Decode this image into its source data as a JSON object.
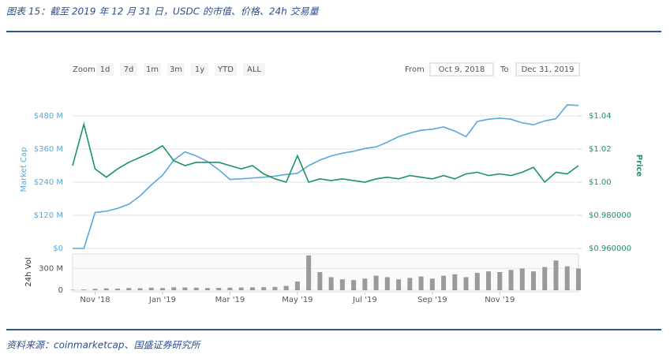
{
  "header": {
    "title": "图表 15：截至 2019 年 12 月 31 日，USDC 的市值、价格、24h 交易量"
  },
  "range_selector": {
    "zoom_label": "Zoom",
    "buttons": [
      "1d",
      "7d",
      "1m",
      "3m",
      "1y",
      "YTD",
      "ALL"
    ],
    "from_label": "From",
    "from": "Oct 9, 2018",
    "to_label": "To",
    "to": "Dec 31, 2019"
  },
  "chart_data": [
    {
      "type": "line",
      "ylabel": "Market Cap",
      "y2label": "Price",
      "ylim": [
        0,
        540
      ],
      "yticks": [
        {
          "value": 0,
          "label": "$0"
        },
        {
          "value": 120,
          "label": "$120 M"
        },
        {
          "value": 240,
          "label": "$240 M"
        },
        {
          "value": 360,
          "label": "$360 M"
        },
        {
          "value": 480,
          "label": "$480 M"
        }
      ],
      "y2lim": [
        0.96,
        1.05
      ],
      "y2ticks": [
        {
          "value": 0.96,
          "label": "$0.960000"
        },
        {
          "value": 0.98,
          "label": "$0.980000"
        },
        {
          "value": 1.0,
          "label": "$1.00"
        },
        {
          "value": 1.02,
          "label": "$1.02"
        },
        {
          "value": 1.04,
          "label": "$1.04"
        }
      ],
      "grid": true,
      "series": [
        {
          "color": "#5aa9d6",
          "values": [
            0,
            0,
            130,
            135,
            145,
            160,
            190,
            230,
            265,
            320,
            350,
            335,
            315,
            285,
            250,
            252,
            255,
            258,
            262,
            268,
            272,
            300,
            320,
            335,
            345,
            352,
            362,
            368,
            385,
            405,
            418,
            428,
            432,
            440,
            425,
            405,
            460,
            468,
            472,
            468,
            455,
            448,
            462,
            470,
            520,
            518
          ]
        },
        {
          "color": "#1a9466",
          "axis": "y2",
          "values": [
            1.01,
            1.035,
            1.008,
            1.003,
            1.008,
            1.012,
            1.015,
            1.018,
            1.022,
            1.013,
            1.01,
            1.012,
            1.012,
            1.012,
            1.01,
            1.008,
            1.01,
            1.005,
            1.002,
            1.0,
            1.016,
            1.0,
            1.002,
            1.001,
            1.002,
            1.001,
            1.0,
            1.002,
            1.003,
            1.002,
            1.004,
            1.003,
            1.002,
            1.004,
            1.002,
            1.005,
            1.006,
            1.004,
            1.005,
            1.004,
            1.006,
            1.009,
            1.0,
            1.006,
            1.005,
            1.01
          ]
        }
      ]
    },
    {
      "type": "bar",
      "ylabel": "24h Vol",
      "ylim": [
        0,
        500
      ],
      "yticks": [
        0,
        {
          "value": 300,
          "label": "300 M"
        }
      ],
      "color": "#9a9a9a",
      "categories": [
        null,
        null,
        "Nov '18",
        null,
        null,
        null,
        null,
        null,
        "Jan '19",
        null,
        null,
        null,
        null,
        null,
        "Mar '19",
        null,
        null,
        null,
        null,
        null,
        "May '19",
        null,
        null,
        null,
        null,
        null,
        "Jul '19",
        null,
        null,
        null,
        null,
        null,
        "Sep '19",
        null,
        null,
        null,
        null,
        null,
        "Nov '19",
        null,
        null,
        null,
        null,
        null,
        null,
        null
      ],
      "values": [
        5,
        10,
        20,
        25,
        22,
        30,
        28,
        35,
        30,
        40,
        38,
        35,
        30,
        32,
        35,
        38,
        40,
        42,
        45,
        60,
        120,
        480,
        250,
        180,
        150,
        140,
        160,
        200,
        180,
        150,
        170,
        190,
        160,
        200,
        220,
        180,
        240,
        260,
        250,
        280,
        300,
        260,
        320,
        410,
        330,
        300
      ]
    }
  ],
  "footer": {
    "source": "资料来源：coinmarketcap、国盛证券研究所"
  }
}
